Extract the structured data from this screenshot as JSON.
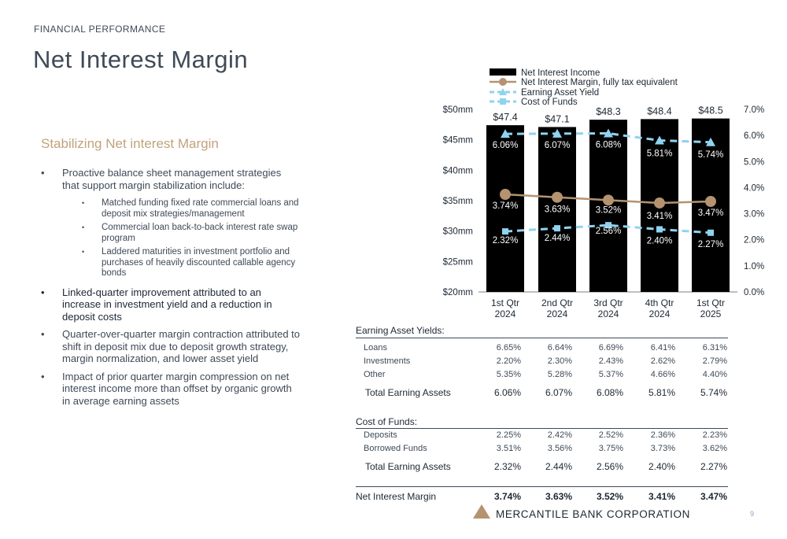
{
  "header": {
    "section": "FINANCIAL PERFORMANCE",
    "title": "Net Interest Margin"
  },
  "left": {
    "subtitle": "Stabilizing Net interest Margin",
    "bullets": [
      {
        "text": "Proactive balance sheet management strategies that support margin stabilization include:",
        "sub": [
          "Matched funding fixed rate commercial loans and deposit mix strategies/management",
          "Commercial loan back-to-back interest rate swap program",
          "Laddered maturities in investment portfolio and purchases of heavily discounted callable agency bonds"
        ]
      },
      {
        "text": "Linked-quarter improvement attributed to an increase in investment yield and a reduction in deposit costs"
      },
      {
        "text": "Quarter-over-quarter margin contraction attributed to shift in deposit mix due to deposit growth strategy, margin normalization, and lower asset yield"
      },
      {
        "text": "Impact of prior quarter margin compression on net interest income more than offset by organic growth in average earning assets"
      }
    ]
  },
  "chart_data": {
    "type": "bar",
    "categories": [
      "1st Qtr\n2024",
      "2nd Qtr\n2024",
      "3rd Qtr\n2024",
      "4th Qtr\n2024",
      "1st Qtr\n2025"
    ],
    "y_left": {
      "ticks": [
        "$20mm",
        "$25mm",
        "$30mm",
        "$35mm",
        "$40mm",
        "$45mm",
        "$50mm"
      ],
      "range": [
        20,
        50
      ]
    },
    "y_right": {
      "ticks": [
        "0.0%",
        "1.0%",
        "2.0%",
        "3.0%",
        "4.0%",
        "5.0%",
        "6.0%",
        "7.0%"
      ],
      "range": [
        0,
        7
      ]
    },
    "legend_position": "top",
    "series": [
      {
        "name": "Net Interest Income",
        "type": "bar",
        "axis": "left",
        "color": "#000000",
        "values": [
          47.4,
          47.1,
          48.3,
          48.4,
          48.5
        ],
        "labels": [
          "$47.4",
          "$47.1",
          "$48.3",
          "$48.4",
          "$48.5"
        ]
      },
      {
        "name": "Net Interest Margin, fully tax equivalent",
        "type": "line",
        "axis": "right",
        "color": "#b59370",
        "marker": "circle",
        "values": [
          3.74,
          3.63,
          3.52,
          3.41,
          3.47
        ],
        "labels": [
          "3.74%",
          "3.63%",
          "3.52%",
          "3.41%",
          "3.47%"
        ]
      },
      {
        "name": "Earning Asset Yield",
        "type": "line",
        "axis": "right",
        "color": "#8fd3ef",
        "marker": "triangle",
        "dashed": true,
        "values": [
          6.06,
          6.07,
          6.08,
          5.81,
          5.74
        ],
        "labels": [
          "6.06%",
          "6.07%",
          "6.08%",
          "5.81%",
          "5.74%"
        ]
      },
      {
        "name": "Cost of Funds",
        "type": "line",
        "axis": "right",
        "color": "#8fd3ef",
        "marker": "square",
        "dashed": true,
        "values": [
          2.32,
          2.44,
          2.56,
          2.4,
          2.27
        ],
        "labels": [
          "2.32%",
          "2.44%",
          "2.56%",
          "2.40%",
          "2.27%"
        ]
      }
    ]
  },
  "table": {
    "yields": {
      "header": "Earning Asset Yields:",
      "rows": [
        {
          "label": "Loans",
          "values": [
            "6.65%",
            "6.64%",
            "6.69%",
            "6.41%",
            "6.31%"
          ]
        },
        {
          "label": "Investments",
          "values": [
            "2.20%",
            "2.30%",
            "2.43%",
            "2.62%",
            "2.79%"
          ]
        },
        {
          "label": "Other",
          "values": [
            "5.35%",
            "5.28%",
            "5.37%",
            "4.66%",
            "4.40%"
          ]
        }
      ],
      "total": {
        "label": "Total Earning Assets",
        "values": [
          "6.06%",
          "6.07%",
          "6.08%",
          "5.81%",
          "5.74%"
        ]
      }
    },
    "funds": {
      "header": "Cost of Funds:",
      "rows": [
        {
          "label": "Deposits",
          "values": [
            "2.25%",
            "2.42%",
            "2.52%",
            "2.36%",
            "2.23%"
          ]
        },
        {
          "label": "Borrowed Funds",
          "values": [
            "3.51%",
            "3.56%",
            "3.75%",
            "3.73%",
            "3.62%"
          ]
        }
      ],
      "total": {
        "label": "Total Earning Assets",
        "values": [
          "2.32%",
          "2.44%",
          "2.56%",
          "2.40%",
          "2.27%"
        ]
      }
    },
    "nim": {
      "label": "Net Interest Margin",
      "values": [
        "3.74%",
        "3.63%",
        "3.52%",
        "3.41%",
        "3.47%"
      ]
    }
  },
  "footer": {
    "company": "MERCANTILE BANK CORPORATION",
    "page": "9",
    "logo_color": "#b59370"
  }
}
